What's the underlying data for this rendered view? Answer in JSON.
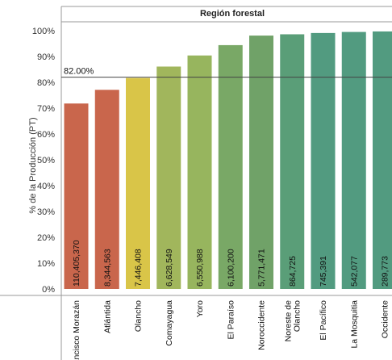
{
  "chart_data": {
    "type": "bar",
    "title": "Región forestal",
    "ylabel": "% de la Producción (PT)",
    "xlabel": "",
    "ylim": [
      0,
      1.0
    ],
    "yticks": [
      "0%",
      "10%",
      "20%",
      "30%",
      "40%",
      "50%",
      "60%",
      "70%",
      "80%",
      "90%",
      "100%"
    ],
    "reference_line": {
      "value": 0.82,
      "label": "82.00%"
    },
    "grid": false,
    "categories": [
      "Francisco Morazán",
      "Atlántida",
      "Olancho",
      "Comayagua",
      "Yoro",
      "El Paraíso",
      "Noroccidente",
      "Noreste de Olancho",
      "El Pacífico",
      "La Mosquitia",
      "Occidente"
    ],
    "category_lines": [
      [
        "Francisco Morazán"
      ],
      [
        "Atlántida"
      ],
      [
        "Olancho"
      ],
      [
        "Comayagua"
      ],
      [
        "Yoro"
      ],
      [
        "El Paraíso"
      ],
      [
        "Noroccidente"
      ],
      [
        "Noreste de",
        "Olancho"
      ],
      [
        "El Pacífico"
      ],
      [
        "La Mosquitia"
      ],
      [
        "Occidente"
      ]
    ],
    "values": [
      0.718,
      0.771,
      0.817,
      0.861,
      0.904,
      0.944,
      0.981,
      0.986,
      0.991,
      0.995,
      0.997
    ],
    "data_labels": [
      "110,405,370",
      "8,344,563",
      "7,446,408",
      "6,628,549",
      "6,550,988",
      "6,100,200",
      "5,771,471",
      "864,725",
      "745,391",
      "542,077",
      "289,773"
    ],
    "colors": [
      "#c9664c",
      "#c9664c",
      "#d9c548",
      "#a1b65c",
      "#97b55e",
      "#79a866",
      "#70a268",
      "#5a9e78",
      "#529b80",
      "#529b80",
      "#529b80"
    ]
  }
}
